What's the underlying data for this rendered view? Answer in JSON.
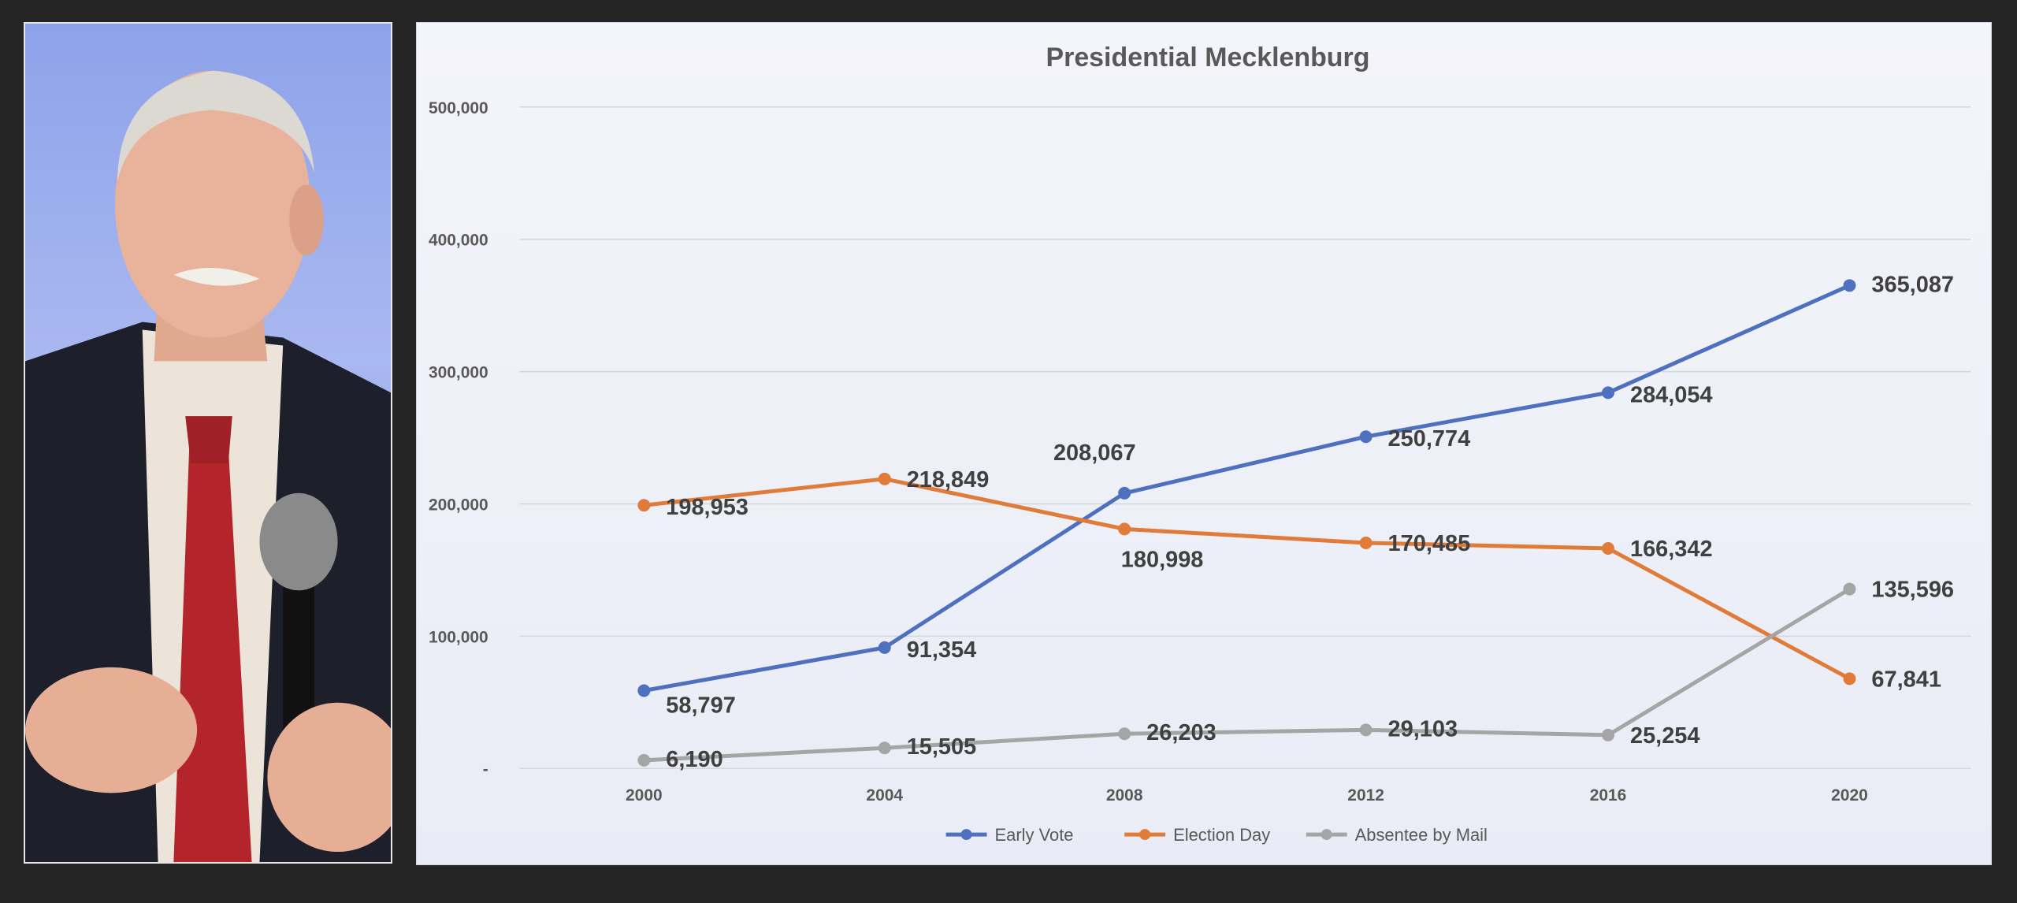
{
  "photo": {
    "description_icon": "speaker-photo"
  },
  "chart_data": {
    "type": "line",
    "title": "Presidential Mecklenburg",
    "x": [
      "2000",
      "2004",
      "2008",
      "2012",
      "2016",
      "2020"
    ],
    "ylim": [
      0,
      500000
    ],
    "yticks": [
      0,
      100000,
      200000,
      300000,
      400000,
      500000
    ],
    "ytick_labels": [
      "-",
      "100,000",
      "200,000",
      "300,000",
      "400,000",
      "500,000"
    ],
    "grid": true,
    "legend_position": "bottom",
    "series": [
      {
        "name": "Early Vote",
        "color": "#4f6fbf",
        "values": [
          58797,
          91354,
          208067,
          250774,
          284054,
          365087
        ],
        "labels": [
          "58,797",
          "91,354",
          "208,067",
          "250,774",
          "284,054",
          "365,087"
        ]
      },
      {
        "name": "Election Day",
        "color": "#e07b39",
        "values": [
          198953,
          218849,
          180998,
          170485,
          166342,
          67841
        ],
        "labels": [
          "198,953",
          "218,849",
          "180,998",
          "170,485",
          "166,342",
          "67,841"
        ]
      },
      {
        "name": "Absentee by Mail",
        "color": "#a5a5a5",
        "values": [
          6190,
          15505,
          26203,
          29103,
          25254,
          135596
        ],
        "labels": [
          "6,190",
          "15,505",
          "26,203",
          "29,103",
          "25,254",
          "135,596"
        ]
      }
    ]
  }
}
